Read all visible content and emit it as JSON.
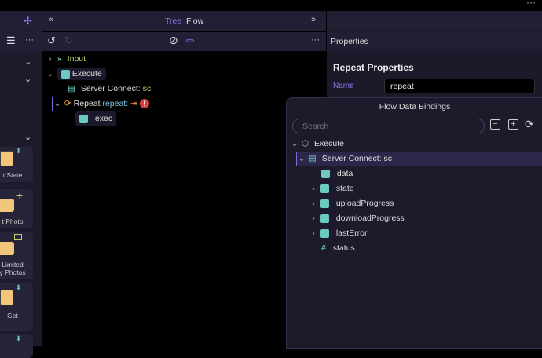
{
  "sidebar": {
    "cards": [
      "t State",
      "t Photo",
      "Limited\ny Photos",
      "Get",
      ""
    ]
  },
  "center": {
    "tabs": [
      "Tree",
      "Flow"
    ],
    "tree": [
      {
        "label": "Input"
      },
      {
        "label": "Execute"
      },
      {
        "label": "Server Connect:",
        "suffix": "sc"
      },
      {
        "label": "Repeat",
        "suffix": "repeat:"
      },
      {
        "label": "exec"
      }
    ]
  },
  "right": {
    "properties_label": "Properties",
    "section_title": "Repeat Properties",
    "name_label": "Name",
    "name_value": "repeat"
  },
  "popup": {
    "title": "Flow Data Bindings",
    "search_placeholder": "Search",
    "root": "Execute",
    "selected": "Server Connect: sc",
    "children": [
      "data",
      "state",
      "uploadProgress",
      "downloadProgress",
      "lastError",
      "status"
    ]
  },
  "colors": {
    "accent": "#8b7cf6",
    "green": "#b5d46a",
    "teal": "#6cc9bf",
    "orange": "#f0a040",
    "error": "#d9403a"
  }
}
